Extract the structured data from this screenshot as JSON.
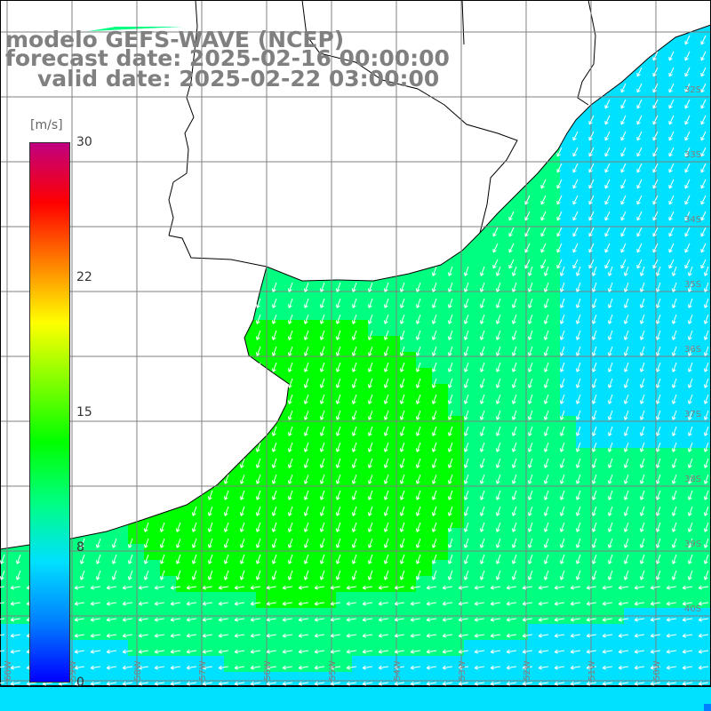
{
  "title_lines": [
    "modelo GEFS-WAVE (NCEP)",
    "forecast date: 2025-02-16 00:00:00",
    "valid date: 2025-02-22 03:00:00"
  ],
  "colorbar": {
    "unit_label": "[m/s]",
    "ticks": [
      "30",
      "22",
      "15",
      "8",
      "0"
    ],
    "tick_values": [
      30,
      22,
      15,
      8,
      0
    ],
    "range": [
      0,
      30
    ],
    "colors": [
      "#0000ff",
      "#0080ff",
      "#00e0ff",
      "#00ff80",
      "#00ff00",
      "#80ff00",
      "#ffff00",
      "#ff8000",
      "#ff0000",
      "#c00080"
    ]
  },
  "lat_labels": [
    "32S",
    "33S",
    "34S",
    "35S",
    "36S",
    "37S",
    "38S",
    "39S",
    "40S"
  ],
  "lon_labels": [
    "60W",
    "59W",
    "58W",
    "57W",
    "56W",
    "55W",
    "54W",
    "53W",
    "52W",
    "51W",
    "50W"
  ],
  "colors": {
    "land": "#ffffff",
    "coast": "#000000",
    "grid": "#808080",
    "arrows": "#ffffff",
    "title": "#808080"
  }
}
